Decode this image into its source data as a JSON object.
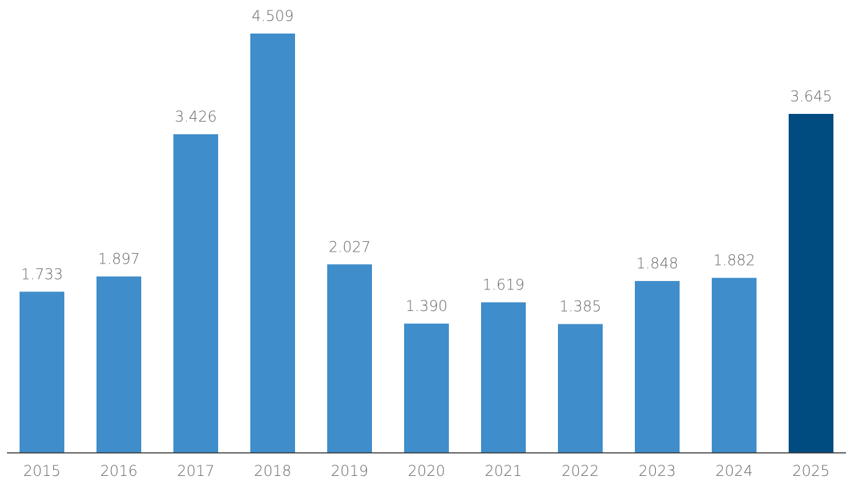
{
  "chart_data": {
    "type": "bar",
    "categories": [
      "2015",
      "2016",
      "2017",
      "2018",
      "2019",
      "2020",
      "2021",
      "2022",
      "2023",
      "2024",
      "2025"
    ],
    "values": [
      1733,
      1897,
      3426,
      4509,
      2027,
      1390,
      1619,
      1385,
      1848,
      1882,
      3645
    ],
    "value_labels": [
      "1.733",
      "1.897",
      "3.426",
      "4.509",
      "2.027",
      "1.390",
      "1.619",
      "1.385",
      "1.848",
      "1.882",
      "3.645"
    ],
    "colors": [
      "#3f8dca",
      "#3f8dca",
      "#3f8dca",
      "#3f8dca",
      "#3f8dca",
      "#3f8dca",
      "#3f8dca",
      "#3f8dca",
      "#3f8dca",
      "#3f8dca",
      "#004b80"
    ]
  }
}
